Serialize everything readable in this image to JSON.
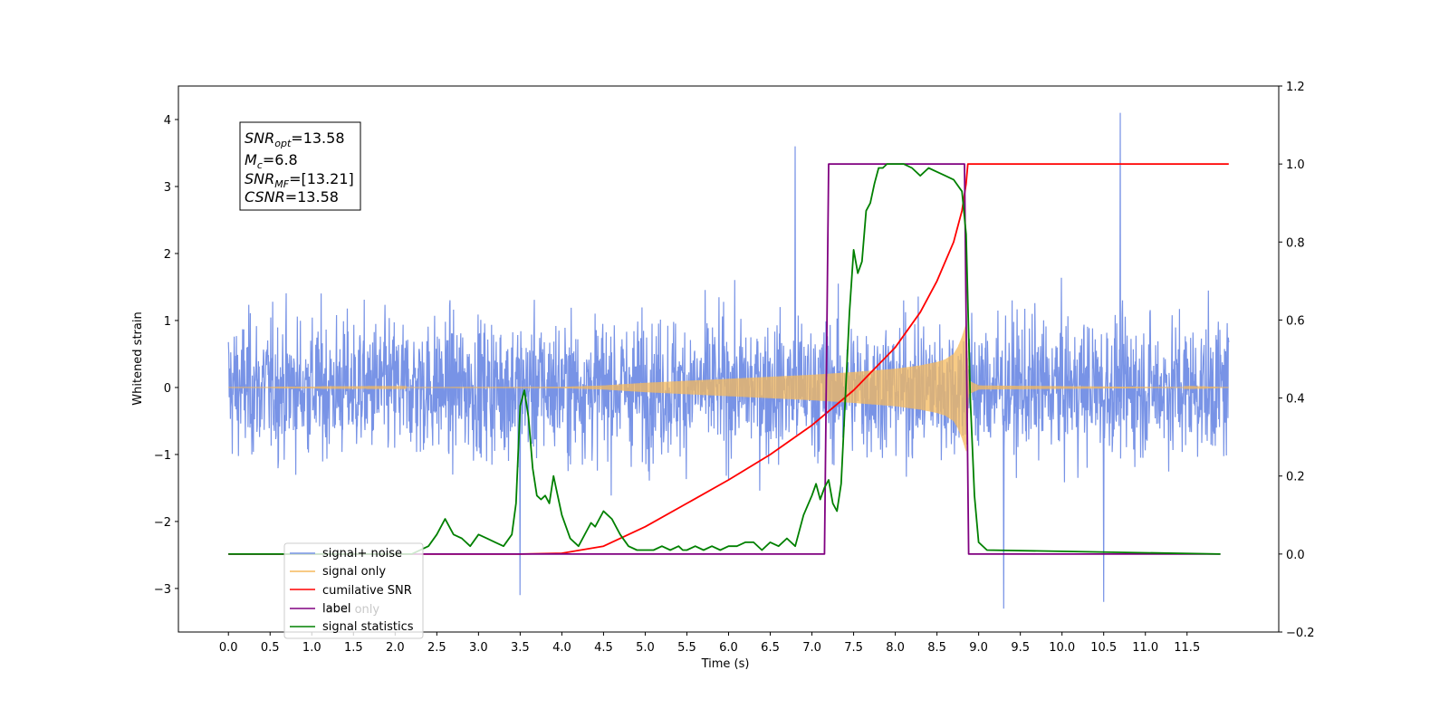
{
  "chart_data": {
    "type": "line",
    "xlabel": "Time (s)",
    "ylabel": "Whitened strain",
    "xlim": [
      -0.6,
      12.6
    ],
    "ylim": [
      -3.65,
      4.5
    ],
    "y2lim": [
      -0.2,
      1.2
    ],
    "xticks": [
      "0.0",
      "0.5",
      "1.0",
      "1.5",
      "2.0",
      "2.5",
      "3.0",
      "3.5",
      "4.0",
      "4.5",
      "5.0",
      "5.5",
      "6.0",
      "6.5",
      "7.0",
      "7.5",
      "8.0",
      "8.5",
      "9.0",
      "9.5",
      "10.0",
      "10.5",
      "11.0",
      "11.5"
    ],
    "yticks": [
      "−3",
      "−2",
      "−1",
      "0",
      "1",
      "2",
      "3",
      "4"
    ],
    "y2ticks": [
      "−0.2",
      "0.0",
      "0.2",
      "0.4",
      "0.6",
      "0.8",
      "1.0",
      "1.2"
    ],
    "annotation": {
      "snr_opt": {
        "base": "SNR",
        "sub": "opt",
        "value": "=13.58"
      },
      "mc": {
        "base": "M",
        "sub": "c",
        "value": "=6.8"
      },
      "snr_mf": {
        "base": "SNR",
        "sub": "MF",
        "value": "=[13.21]"
      },
      "csnr": {
        "base": "CSNR",
        "value": "=13.58"
      }
    },
    "legend": {
      "placement": "lower-left",
      "items": [
        "signal+ noise",
        "signal only",
        "cumilative SNR",
        "label",
        "signal statistics"
      ],
      "overlapped_text": "label only"
    },
    "series": [
      {
        "name": "signal+ noise",
        "axis": "left",
        "color": "#7893e6",
        "x_range": [
          0.0,
          12.0
        ],
        "envelope_typical": 1.65,
        "envelope_peak": 3.4,
        "extremes": [
          {
            "x": 6.8,
            "y": 3.6
          },
          {
            "x": 10.7,
            "y": 4.1
          },
          {
            "x": 3.5,
            "y": -3.1
          },
          {
            "x": 9.3,
            "y": -3.3
          },
          {
            "x": 10.5,
            "y": -3.2
          }
        ]
      },
      {
        "name": "signal only",
        "axis": "left",
        "color": "#f5b95c",
        "envelope": [
          [
            0.0,
            0.0
          ],
          [
            4.0,
            0.01
          ],
          [
            4.5,
            0.03
          ],
          [
            5.0,
            0.07
          ],
          [
            5.5,
            0.1
          ],
          [
            6.0,
            0.13
          ],
          [
            6.5,
            0.16
          ],
          [
            7.0,
            0.19
          ],
          [
            7.5,
            0.23
          ],
          [
            8.0,
            0.28
          ],
          [
            8.3,
            0.33
          ],
          [
            8.5,
            0.38
          ],
          [
            8.6,
            0.42
          ],
          [
            8.7,
            0.5
          ],
          [
            8.75,
            0.6
          ],
          [
            8.8,
            0.75
          ],
          [
            8.85,
            0.95
          ],
          [
            8.88,
            0.1
          ],
          [
            9.0,
            0.03
          ],
          [
            12.0,
            0.0
          ]
        ]
      },
      {
        "name": "cumilative SNR",
        "axis": "right",
        "color": "#ff0000",
        "x": [
          0.0,
          3.5,
          4.0,
          4.5,
          5.0,
          5.5,
          6.0,
          6.5,
          7.0,
          7.5,
          8.0,
          8.3,
          8.5,
          8.7,
          8.8,
          8.85,
          8.87,
          8.9,
          12.0
        ],
        "y": [
          0.0,
          0.0,
          0.002,
          0.02,
          0.07,
          0.13,
          0.19,
          0.255,
          0.33,
          0.42,
          0.53,
          0.62,
          0.7,
          0.8,
          0.88,
          0.95,
          1.0,
          1.0,
          1.0
        ]
      },
      {
        "name": "label",
        "axis": "right",
        "color": "#800080",
        "x": [
          0.0,
          7.15,
          7.2,
          8.83,
          8.88,
          11.9
        ],
        "y": [
          0.0,
          0.0,
          1.0,
          1.0,
          0.0,
          0.0
        ]
      },
      {
        "name": "signal statistics",
        "axis": "right",
        "color": "#008000",
        "x": [
          0.0,
          2.2,
          2.3,
          2.4,
          2.5,
          2.6,
          2.7,
          2.8,
          2.9,
          3.0,
          3.1,
          3.2,
          3.3,
          3.4,
          3.45,
          3.5,
          3.55,
          3.6,
          3.65,
          3.7,
          3.75,
          3.8,
          3.85,
          3.9,
          3.95,
          4.0,
          4.1,
          4.2,
          4.3,
          4.35,
          4.4,
          4.5,
          4.55,
          4.6,
          4.7,
          4.8,
          4.9,
          5.0,
          5.1,
          5.2,
          5.3,
          5.4,
          5.45,
          5.5,
          5.6,
          5.7,
          5.8,
          5.9,
          6.0,
          6.1,
          6.2,
          6.3,
          6.4,
          6.5,
          6.6,
          6.7,
          6.8,
          6.9,
          7.0,
          7.05,
          7.1,
          7.15,
          7.2,
          7.25,
          7.3,
          7.35,
          7.4,
          7.45,
          7.5,
          7.55,
          7.6,
          7.65,
          7.7,
          7.75,
          7.8,
          7.85,
          7.9,
          7.95,
          8.0,
          8.1,
          8.2,
          8.3,
          8.4,
          8.5,
          8.6,
          8.7,
          8.8,
          8.85,
          8.9,
          8.95,
          9.0,
          9.1,
          11.9
        ],
        "y": [
          0.0,
          0.0,
          0.01,
          0.02,
          0.05,
          0.09,
          0.05,
          0.04,
          0.02,
          0.05,
          0.04,
          0.03,
          0.02,
          0.05,
          0.13,
          0.38,
          0.42,
          0.35,
          0.22,
          0.15,
          0.14,
          0.15,
          0.13,
          0.2,
          0.15,
          0.1,
          0.04,
          0.02,
          0.06,
          0.08,
          0.07,
          0.11,
          0.1,
          0.09,
          0.05,
          0.02,
          0.01,
          0.01,
          0.01,
          0.02,
          0.01,
          0.02,
          0.01,
          0.01,
          0.02,
          0.01,
          0.02,
          0.01,
          0.02,
          0.02,
          0.03,
          0.03,
          0.01,
          0.03,
          0.02,
          0.04,
          0.02,
          0.1,
          0.15,
          0.18,
          0.14,
          0.17,
          0.19,
          0.13,
          0.11,
          0.18,
          0.4,
          0.62,
          0.78,
          0.72,
          0.75,
          0.88,
          0.9,
          0.95,
          0.99,
          0.99,
          1.0,
          1.0,
          1.0,
          1.0,
          0.99,
          0.97,
          0.99,
          0.98,
          0.97,
          0.96,
          0.93,
          0.82,
          0.4,
          0.15,
          0.03,
          0.01,
          0.0
        ]
      }
    ]
  }
}
